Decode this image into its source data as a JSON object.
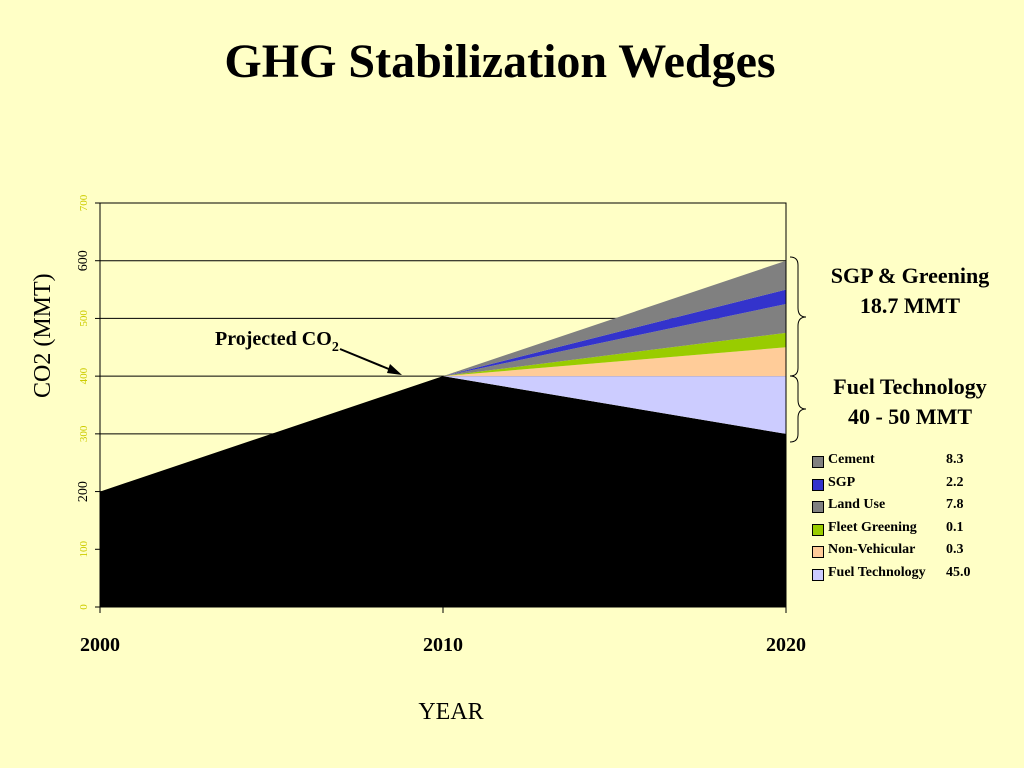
{
  "title": "GHG Stabilization Wedges",
  "chart_data": {
    "type": "area",
    "x": [
      2000,
      2010,
      2020
    ],
    "xlabel": "YEAR",
    "ylabel": "CO2 (MMT)",
    "ylim": [
      0,
      700
    ],
    "yticks": [
      "0",
      "100",
      "200",
      "300",
      "400",
      "500",
      "600",
      "700"
    ],
    "xticks": [
      "2000",
      "2010",
      "2020"
    ],
    "grid": true,
    "baseline": {
      "name": "Projected CO2",
      "values": [
        200,
        400,
        300
      ],
      "color": "#000000"
    },
    "wedges": [
      {
        "name": "Fuel Technology",
        "label_value": "45.0",
        "color": "#CCCCFF",
        "lower": [
          200,
          400,
          300
        ],
        "upper": [
          200,
          400,
          400
        ]
      },
      {
        "name": "Non-Vehicular",
        "label_value": "0.3",
        "color": "#FFCC99",
        "lower": [
          200,
          400,
          400
        ],
        "upper": [
          200,
          400,
          450
        ]
      },
      {
        "name": "Fleet Greening",
        "label_value": "0.1",
        "color": "#99CC00",
        "lower": [
          200,
          400,
          450
        ],
        "upper": [
          200,
          400,
          475
        ]
      },
      {
        "name": "Land Use",
        "label_value": "7.8",
        "color": "#808080",
        "lower": [
          200,
          400,
          475
        ],
        "upper": [
          200,
          400,
          525
        ]
      },
      {
        "name": "SGP",
        "label_value": "2.2",
        "color": "#3333CC",
        "lower": [
          200,
          400,
          525
        ],
        "upper": [
          200,
          400,
          550
        ]
      },
      {
        "name": "Cement",
        "label_value": "8.3",
        "color": "#808080",
        "lower": [
          200,
          400,
          550
        ],
        "upper": [
          200,
          400,
          600
        ]
      }
    ],
    "annotations": {
      "projected_text": "Projected CO",
      "projected_sub": "2",
      "sgp_line1": "SGP & Greening",
      "sgp_line2": "18.7 MMT",
      "fuel_line1": "Fuel Technology",
      "fuel_line2": "40 - 50 MMT"
    }
  }
}
